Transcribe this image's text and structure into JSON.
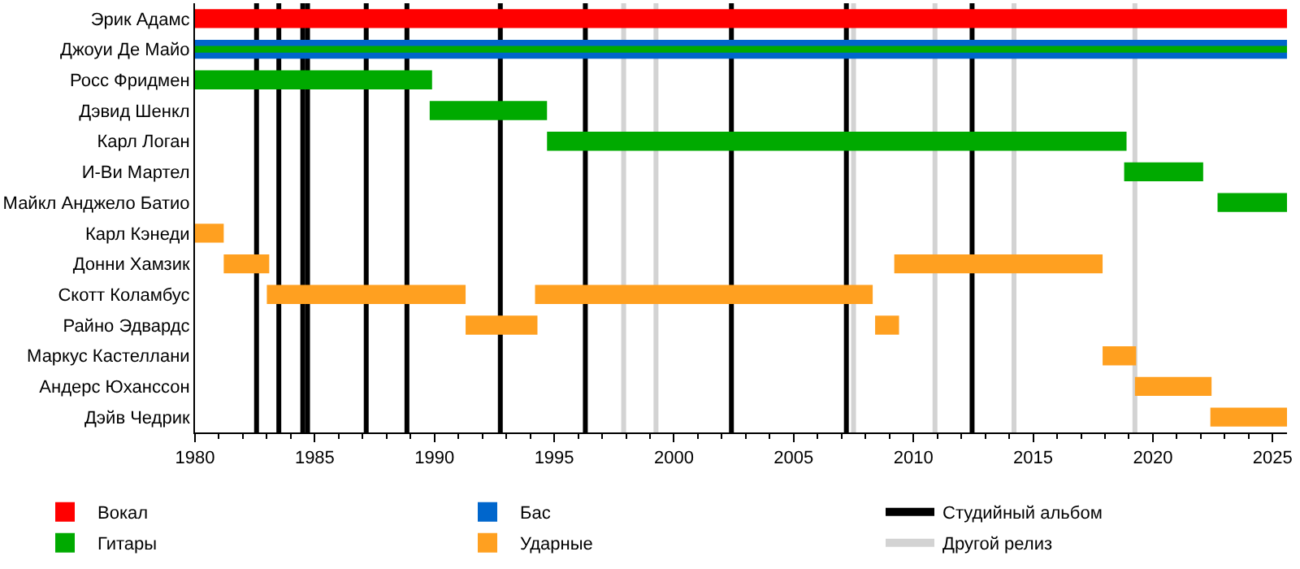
{
  "chart_data": {
    "type": "bar",
    "orientation": "horizontal",
    "categories": [
      "Эрик Адамс",
      "Джоуи Де Майо",
      "Росс Фридмен",
      "Дэвид Шенкл",
      "Карл Логан",
      "И-Ви Мартел",
      "Майкл Анджело Батио",
      "Карл Кэнеди",
      "Донни Хамзик",
      "Скотт Коламбус",
      "Райно Эдвардс",
      "Маркус Кастеллани",
      "Андерс Юханссон",
      "Дэйв Чедрик"
    ],
    "series": [
      {
        "name": "Вокал",
        "color": "#ff0000",
        "values": [
          45.6,
          null,
          null,
          null,
          null,
          null,
          null,
          null,
          null,
          null,
          null,
          null,
          null,
          null
        ],
        "base": [
          1980,
          null,
          null,
          null,
          null,
          null,
          null,
          null,
          null,
          null,
          null,
          null,
          null,
          null
        ]
      },
      {
        "name": "Бас",
        "color": "#0066cc",
        "values": [
          null,
          45.6,
          null,
          null,
          null,
          null,
          null,
          null,
          null,
          null,
          null,
          null,
          null,
          null
        ],
        "base": [
          null,
          1980,
          null,
          null,
          null,
          null,
          null,
          null,
          null,
          null,
          null,
          null,
          null,
          null
        ]
      },
      {
        "name": "Гитары",
        "color": "#00aa00",
        "values": [
          null,
          45.6,
          9.9,
          4.9,
          24.2,
          3.3,
          2.9,
          null,
          null,
          null,
          null,
          null,
          null,
          null
        ],
        "base": [
          null,
          1980,
          1980,
          1989.8,
          1994.7,
          2018.8,
          2022.7,
          null,
          null,
          null,
          null,
          null,
          null,
          null
        ]
      },
      {
        "name": "Ударные",
        "color": "#ffa020",
        "values": [
          null,
          null,
          null,
          null,
          null,
          null,
          null,
          1.2,
          1.9,
          8.3,
          3.0,
          1.4,
          3.2,
          3.2
        ],
        "base": [
          null,
          null,
          null,
          null,
          null,
          null,
          null,
          1980,
          1981.2,
          1983,
          1991.3,
          2017.9,
          2019.25,
          2022.4
        ]
      },
      {
        "color": "#ffa020",
        "values": [
          null,
          null,
          null,
          null,
          null,
          null,
          null,
          null,
          8.7,
          14.1,
          1.0,
          null,
          null,
          null
        ],
        "base": [
          null,
          null,
          null,
          null,
          null,
          null,
          null,
          null,
          2009.2,
          1994.2,
          2008.4,
          null,
          null,
          null
        ]
      }
    ],
    "xlim": [
      1980,
      2025.6
    ],
    "xticks": [
      1980,
      1985,
      1990,
      1995,
      2000,
      2005,
      2010,
      2015,
      2020,
      2025
    ],
    "ref_lines": [
      {
        "axis": "x",
        "value": 1982.57,
        "color": "#000000",
        "label": "Студийный альбом"
      },
      {
        "axis": "x",
        "value": 1983.5,
        "color": "#000000"
      },
      {
        "axis": "x",
        "value": 1984.5,
        "color": "#000000"
      },
      {
        "axis": "x",
        "value": 1984.7,
        "color": "#000000"
      },
      {
        "axis": "x",
        "value": 1987.15,
        "color": "#000000"
      },
      {
        "axis": "x",
        "value": 1988.85,
        "color": "#000000"
      },
      {
        "axis": "x",
        "value": 1992.75,
        "color": "#000000"
      },
      {
        "axis": "x",
        "value": 1996.3,
        "color": "#000000"
      },
      {
        "axis": "x",
        "value": 2002.4,
        "color": "#000000"
      },
      {
        "axis": "x",
        "value": 2007.2,
        "color": "#000000"
      },
      {
        "axis": "x",
        "value": 2012.45,
        "color": "#000000"
      },
      {
        "axis": "x",
        "value": 1997.9,
        "color": "#d3d3d3",
        "label": "Другой релиз"
      },
      {
        "axis": "x",
        "value": 1999.25,
        "color": "#d3d3d3"
      },
      {
        "axis": "x",
        "value": 2007.5,
        "color": "#d3d3d3"
      },
      {
        "axis": "x",
        "value": 2010.9,
        "color": "#d3d3d3"
      },
      {
        "axis": "x",
        "value": 2014.2,
        "color": "#d3d3d3"
      },
      {
        "axis": "x",
        "value": 2019.25,
        "color": "#d3d3d3"
      }
    ],
    "grid": false,
    "legend": "bottom"
  }
}
